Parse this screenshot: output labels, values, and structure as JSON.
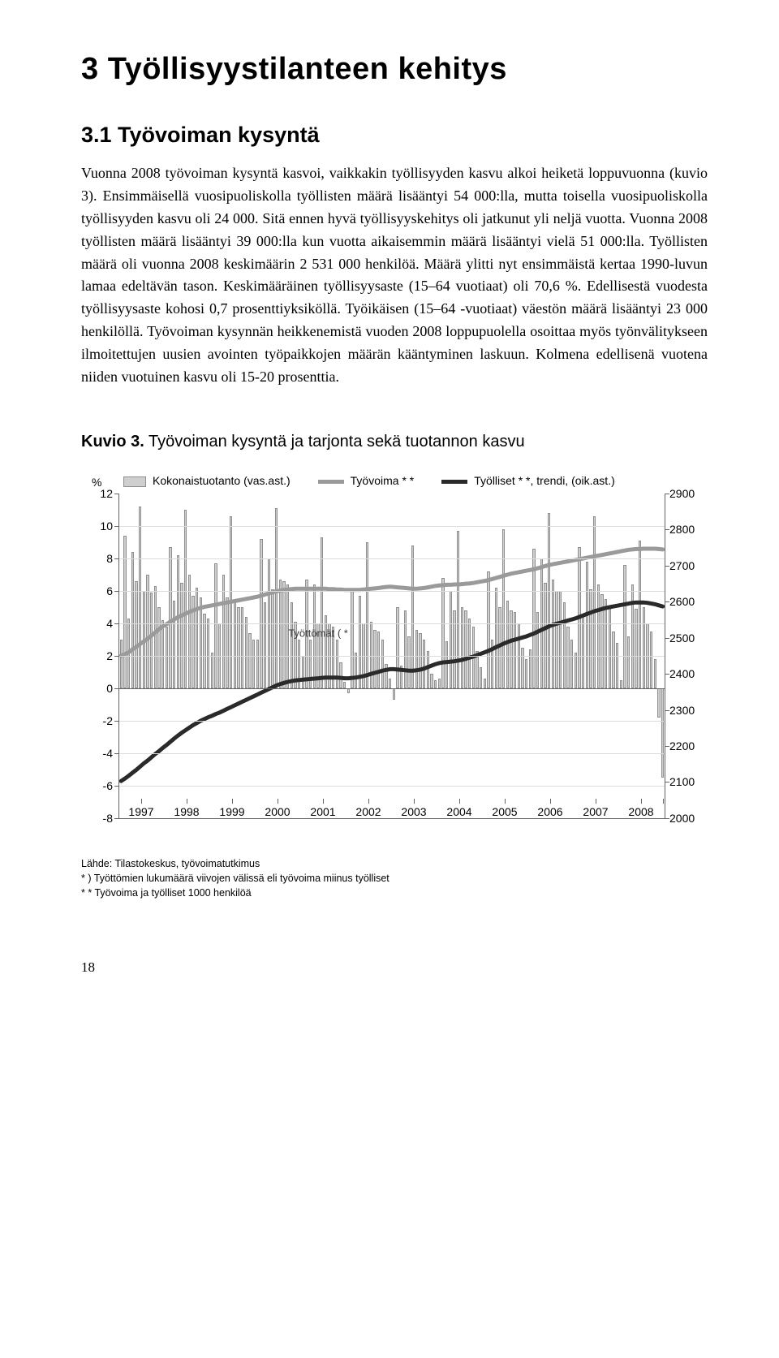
{
  "heading1": "3 Työllisyystilanteen kehitys",
  "heading2": "3.1 Työvoiman kysyntä",
  "paragraph": "Vuonna 2008 työvoiman kysyntä kasvoi, vaikkakin työllisyyden kasvu alkoi heiketä loppuvuonna (kuvio 3). Ensimmäisellä vuosipuoliskolla työllisten määrä lisääntyi 54 000:lla, mutta toisella vuosipuoliskolla työllisyyden kasvu oli 24 000. Sitä ennen hyvä työllisyyskehitys oli jatkunut yli neljä vuotta. Vuonna 2008 työllisten määrä lisääntyi 39 000:lla kun vuotta aikaisemmin määrä lisääntyi vielä 51 000:lla. Työllisten määrä oli vuonna 2008 keskimäärin 2 531 000 henkilöä. Määrä ylitti nyt ensimmäistä kertaa 1990-luvun lamaa edeltävän tason. Keskimääräinen työllisyysaste (15–64 vuotiaat) oli 70,6 %. Edellisestä vuodesta työllisyysaste kohosi 0,7 prosenttiyksiköllä. Työikäisen (15–64 -vuotiaat) väestön määrä lisääntyi 23 000 henkilöllä. Työvoiman kysynnän heikkenemistä vuoden 2008 loppupuolella osoittaa myös työnvälitykseen ilmoitettujen uusien avointen työpaikkojen määrän kääntyminen laskuun. Kolmena edellisenä vuotena niiden vuotuinen kasvu oli 15-20 prosenttia.",
  "figure": {
    "caption_bold": "Kuvio 3.",
    "caption_rest": " Työvoiman kysyntä ja tarjonta sekä tuotannon kasvu",
    "legend": {
      "bars": "Kokonaistuotanto (vas.ast.)",
      "line_tv": "Työvoima * *",
      "line_ty": "Työlliset * *, trendi, (oik.ast.)"
    },
    "pct_label": "%",
    "unemployed_label": "Työttömät ( *",
    "type": "combo",
    "y_left": {
      "min": -8,
      "max": 12,
      "step": 2
    },
    "y_right": {
      "min": 2000,
      "max": 2900,
      "step": 100
    },
    "x_years": [
      1997,
      1998,
      1999,
      2000,
      2001,
      2002,
      2003,
      2004,
      2005,
      2006,
      2007,
      2008
    ],
    "bar_color": "#cfcfcf",
    "bar_stroke": "#8f8f8f",
    "line_tv_color": "#9a9a9a",
    "line_tv_width": 5,
    "line_ty_color": "#2a2a2a",
    "line_ty_width": 5,
    "grid_color": "#dcdcdc",
    "axis_color": "#646464",
    "bars_per_year": 12,
    "bars": [
      3.0,
      9.4,
      4.3,
      8.4,
      6.6,
      11.2,
      6.0,
      7.0,
      5.9,
      6.3,
      5.0,
      4.2,
      3.8,
      8.7,
      5.4,
      8.2,
      6.5,
      11.0,
      7.0,
      5.7,
      6.2,
      5.6,
      4.6,
      4.3,
      2.2,
      7.7,
      4.0,
      7.0,
      5.6,
      10.6,
      5.4,
      5.0,
      5.0,
      4.4,
      3.4,
      3.0,
      3.0,
      9.2,
      5.3,
      8.0,
      6.1,
      11.1,
      6.7,
      6.6,
      6.4,
      5.3,
      4.1,
      3.0,
      2.0,
      6.7,
      3.0,
      6.4,
      4.0,
      9.3,
      4.5,
      4.0,
      3.8,
      3.0,
      1.6,
      0.4,
      -0.3,
      6.0,
      2.2,
      5.7,
      4.0,
      9.0,
      4.1,
      3.6,
      3.5,
      3.0,
      1.5,
      0.6,
      -0.7,
      5.0,
      1.4,
      4.8,
      3.2,
      8.8,
      3.6,
      3.4,
      3.0,
      2.3,
      0.9,
      0.5,
      0.6,
      6.8,
      2.9,
      6.0,
      4.8,
      9.7,
      5.0,
      4.8,
      4.3,
      3.8,
      2.3,
      1.3,
      0.6,
      7.2,
      3.0,
      6.2,
      5.0,
      9.8,
      5.4,
      4.8,
      4.7,
      4.0,
      2.5,
      1.8,
      2.4,
      8.6,
      4.7,
      8.0,
      6.5,
      10.8,
      6.7,
      6.0,
      6.0,
      5.3,
      3.8,
      3.0,
      2.2,
      8.7,
      4.5,
      7.8,
      6.1,
      10.6,
      6.4,
      5.8,
      5.5,
      5.0,
      3.5,
      2.8,
      0.5,
      7.6,
      3.2,
      6.4,
      4.9,
      9.1,
      5.0,
      4.0,
      3.5,
      1.8,
      -1.8,
      -5.5
    ],
    "line_tv": [
      2450,
      2455,
      2460,
      2468,
      2475,
      2483,
      2490,
      2498,
      2506,
      2515,
      2524,
      2532,
      2538,
      2545,
      2551,
      2557,
      2562,
      2567,
      2572,
      2576,
      2580,
      2583,
      2586,
      2588,
      2590,
      2592,
      2594,
      2596,
      2598,
      2600,
      2602,
      2604,
      2606,
      2608,
      2610,
      2612,
      2614,
      2617,
      2620,
      2623,
      2626,
      2629,
      2631,
      2633,
      2634,
      2635,
      2636,
      2636,
      2636,
      2636,
      2636,
      2636,
      2636,
      2636,
      2636,
      2635,
      2635,
      2634,
      2634,
      2633,
      2633,
      2633,
      2633,
      2633,
      2634,
      2635,
      2636,
      2637,
      2638,
      2640,
      2641,
      2642,
      2641,
      2640,
      2639,
      2638,
      2637,
      2636,
      2636,
      2637,
      2638,
      2640,
      2642,
      2644,
      2645,
      2646,
      2647,
      2647,
      2648,
      2648,
      2649,
      2650,
      2651,
      2652,
      2654,
      2656,
      2658,
      2660,
      2663,
      2666,
      2669,
      2672,
      2675,
      2678,
      2680,
      2682,
      2684,
      2686,
      2688,
      2690,
      2693,
      2696,
      2699,
      2702,
      2704,
      2706,
      2708,
      2710,
      2712,
      2714,
      2716,
      2718,
      2720,
      2722,
      2724,
      2726,
      2728,
      2730,
      2732,
      2734,
      2736,
      2738,
      2740,
      2742,
      2744,
      2745,
      2746,
      2746,
      2747,
      2747,
      2747,
      2747,
      2746,
      2745
    ],
    "line_ty": [
      2103,
      2110,
      2118,
      2126,
      2134,
      2143,
      2152,
      2160,
      2169,
      2178,
      2186,
      2195,
      2203,
      2212,
      2221,
      2229,
      2237,
      2244,
      2251,
      2258,
      2264,
      2270,
      2275,
      2280,
      2284,
      2289,
      2293,
      2298,
      2303,
      2308,
      2313,
      2318,
      2323,
      2328,
      2333,
      2338,
      2343,
      2348,
      2353,
      2358,
      2363,
      2368,
      2372,
      2375,
      2378,
      2380,
      2382,
      2383,
      2384,
      2385,
      2386,
      2387,
      2388,
      2389,
      2390,
      2390,
      2390,
      2390,
      2389,
      2388,
      2388,
      2389,
      2390,
      2392,
      2394,
      2397,
      2400,
      2403,
      2406,
      2409,
      2411,
      2413,
      2413,
      2412,
      2411,
      2410,
      2409,
      2409,
      2410,
      2412,
      2415,
      2419,
      2423,
      2427,
      2430,
      2432,
      2433,
      2434,
      2435,
      2437,
      2439,
      2442,
      2445,
      2448,
      2452,
      2456,
      2460,
      2464,
      2469,
      2474,
      2479,
      2484,
      2488,
      2492,
      2495,
      2498,
      2501,
      2504,
      2508,
      2512,
      2517,
      2522,
      2527,
      2532,
      2536,
      2539,
      2542,
      2545,
      2548,
      2551,
      2554,
      2558,
      2562,
      2566,
      2570,
      2574,
      2577,
      2580,
      2583,
      2585,
      2587,
      2589,
      2591,
      2593,
      2595,
      2597,
      2598,
      2598,
      2598,
      2597,
      2595,
      2593,
      2590,
      2587
    ],
    "source_lines": [
      "Lähde: Tilastokeskus, työvoimatutkimus",
      "* ) Työttömien lukumäärä viivojen välissä eli työvoima miinus työlliset",
      "* * Työvoima ja työlliset 1000 henkilöä"
    ]
  },
  "page_number": "18"
}
